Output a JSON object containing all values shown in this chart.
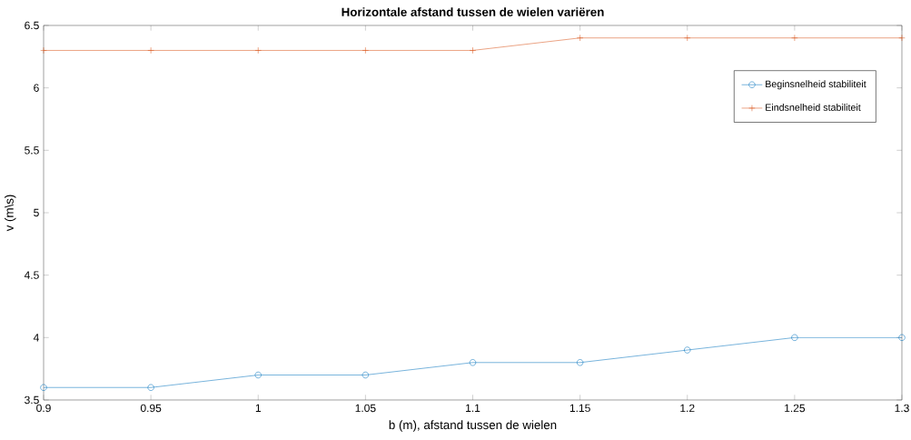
{
  "chart_data": {
    "type": "line",
    "title": "Horizontale afstand tussen de wielen variëren",
    "xlabel": "b (m), afstand tussen de wielen",
    "ylabel": "v (m\\s)",
    "x": [
      0.9,
      0.95,
      1.0,
      1.05,
      1.1,
      1.15,
      1.2,
      1.25,
      1.3
    ],
    "series": [
      {
        "name": "Beginsnelheid stabiliteit",
        "color": "#0072bd",
        "marker": "circle",
        "values": [
          3.6,
          3.6,
          3.7,
          3.7,
          3.8,
          3.8,
          3.9,
          4.0,
          4.0
        ]
      },
      {
        "name": "Eindsnelheid stabiliteit",
        "color": "#d95319",
        "marker": "cross",
        "values": [
          6.3,
          6.3,
          6.3,
          6.3,
          6.3,
          6.4,
          6.4,
          6.4,
          6.4
        ]
      }
    ],
    "xlim": [
      0.9,
      1.3
    ],
    "xticks": [
      0.9,
      0.95,
      1,
      1.05,
      1.1,
      1.15,
      1.2,
      1.25,
      1.3
    ],
    "ylim": [
      3.5,
      6.5
    ],
    "yticks": [
      3.5,
      4,
      4.5,
      5,
      5.5,
      6,
      6.5
    ],
    "grid": false,
    "legend": "top right",
    "line_style": "solid"
  }
}
